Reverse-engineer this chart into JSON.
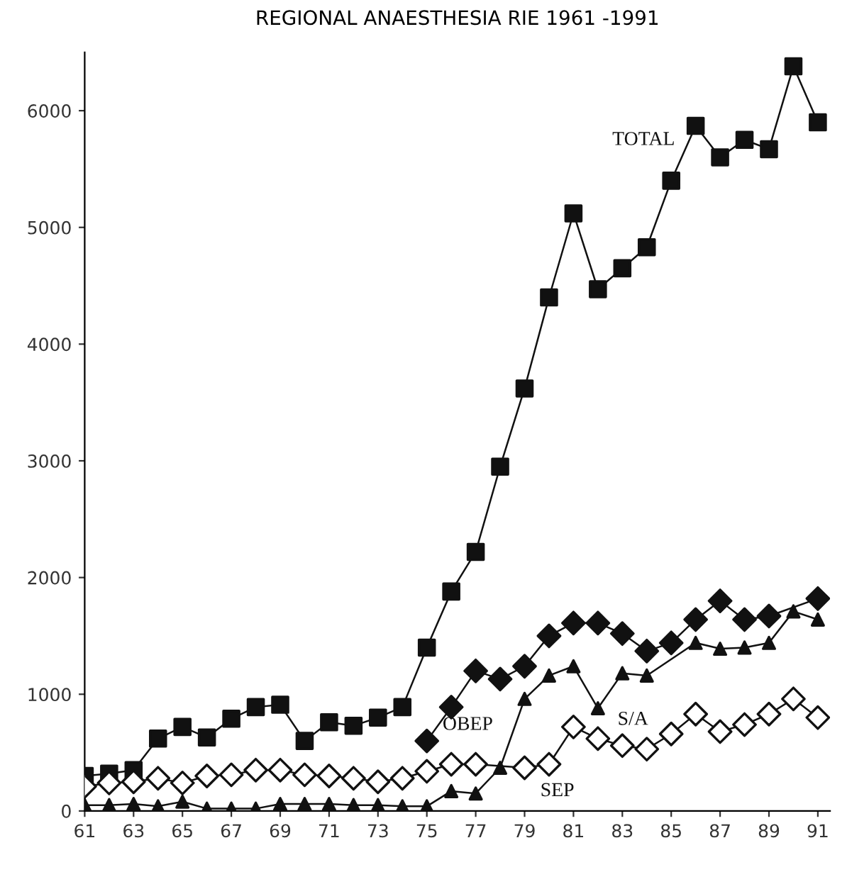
{
  "chart_data": {
    "type": "line",
    "title": "REGIONAL ANAESTHESIA RIE 1961 -1991",
    "series": [
      {
        "name": "TOTAL",
        "color": "#111111",
        "marker": "square",
        "x": [
          61,
          62,
          63,
          64,
          65,
          66,
          67,
          68,
          69,
          70,
          71,
          72,
          73,
          74,
          75,
          76,
          77,
          78,
          79,
          80,
          81,
          82,
          83,
          84,
          85,
          86,
          87,
          88,
          89,
          90,
          91
        ],
        "values": [
          300,
          320,
          350,
          620,
          720,
          630,
          790,
          890,
          910,
          600,
          760,
          730,
          800,
          890,
          1400,
          1880,
          2220,
          2950,
          3620,
          4400,
          5120,
          4470,
          4650,
          4830,
          5400,
          5870,
          5600,
          5750,
          5670,
          6380,
          5900
        ]
      },
      {
        "name": "OBEP",
        "color": "#111111",
        "marker": "diamond",
        "x": [
          75,
          76,
          77,
          78,
          79,
          80,
          81,
          82,
          83,
          84,
          85,
          86,
          87,
          88,
          89,
          91
        ],
        "values": [
          600,
          890,
          1200,
          1130,
          1240,
          1500,
          1610,
          1610,
          1520,
          1370,
          1440,
          1640,
          1800,
          1640,
          1670,
          1820
        ]
      },
      {
        "name": "S/A",
        "color": "#111111",
        "marker": "triangle",
        "x": [
          61,
          62,
          63,
          64,
          65,
          66,
          67,
          68,
          69,
          70,
          71,
          72,
          73,
          74,
          75,
          76,
          77,
          78,
          79,
          80,
          81,
          82,
          83,
          84,
          86,
          87,
          88,
          89,
          90,
          91
        ],
        "values": [
          50,
          50,
          60,
          40,
          80,
          20,
          20,
          20,
          60,
          60,
          60,
          50,
          50,
          40,
          40,
          170,
          150,
          370,
          960,
          1160,
          1240,
          880,
          1180,
          1160,
          1440,
          1390,
          1400,
          1440,
          1710,
          1640
        ]
      },
      {
        "name": "SEP",
        "color": "#111111",
        "marker": "diamond",
        "colors": [
          "#ffffff",
          "#ffffff",
          "#ffffff",
          "#ffffff",
          "#ffffff",
          "#ffffff",
          "#ffffff",
          "#ffffff",
          "#ffffff",
          "#ffffff",
          "#ffffff",
          "#ffffff",
          "#ffffff",
          "#ffffff",
          "#ffffff",
          "#ffffff",
          "#ffffff",
          "#ffffff",
          "#ffffff",
          "#ffffff",
          "#ffffff",
          "#ffffff",
          "#ffffff",
          "#ffffff",
          "#ffffff",
          "#ffffff",
          "#ffffff",
          "#ffffff",
          "#ffffff",
          "#ffffff"
        ],
        "x": [
          61,
          62,
          63,
          64,
          65,
          66,
          67,
          68,
          69,
          70,
          71,
          72,
          73,
          74,
          75,
          76,
          77,
          79,
          80,
          81,
          82,
          83,
          84,
          85,
          86,
          87,
          88,
          89,
          90,
          91
        ],
        "values": [
          210,
          240,
          250,
          280,
          240,
          300,
          310,
          350,
          350,
          310,
          300,
          280,
          250,
          280,
          340,
          400,
          400,
          370,
          400,
          720,
          620,
          560,
          530,
          660,
          830,
          680,
          740,
          830,
          960,
          800
        ]
      }
    ],
    "xlim": [
      61,
      91.5
    ],
    "ylim": [
      0,
      6500
    ],
    "xticks": [
      61,
      63,
      65,
      67,
      69,
      71,
      73,
      75,
      77,
      79,
      81,
      83,
      85,
      87,
      89,
      91
    ],
    "yticks": [
      0,
      1000,
      2000,
      3000,
      4000,
      5000,
      6000
    ],
    "grid": false,
    "line_style": "solid"
  }
}
